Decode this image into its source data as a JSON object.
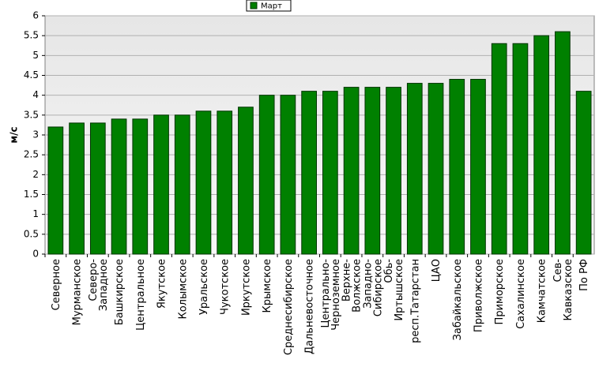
{
  "chart_data": {
    "type": "bar",
    "y_label": "м/с",
    "categories": [
      "Северное",
      "Мурманское",
      "Северо-\nЗападное",
      "Башкирское",
      "Центральное",
      "Якутское",
      "Колымское",
      "Уральское",
      "Чукотское",
      "Иркутское",
      "Крымское",
      "Среднесибирское",
      "Дальневосточное",
      "Центрально-\nЧерноземное",
      "Верхне-\nВолжское",
      "Западно-\nСибирское",
      "Обь-\nИртышское",
      "респ.Татарстан",
      "ЦАО",
      "Забайкальское",
      "Приволжское",
      "Приморское",
      "Сахалинское",
      "Камчатское",
      "Сев-\nКавказское",
      "По РФ"
    ],
    "series": [
      {
        "name": "Март",
        "color": "#008000",
        "values": [
          3.2,
          3.3,
          3.3,
          3.4,
          3.4,
          3.5,
          3.5,
          3.6,
          3.6,
          3.7,
          4.0,
          4.0,
          4.1,
          4.1,
          4.2,
          4.2,
          4.2,
          4.3,
          4.3,
          4.4,
          4.4,
          5.3,
          5.3,
          5.5,
          5.6,
          4.1
        ]
      }
    ],
    "ylim": [
      0,
      6
    ],
    "yticks": [
      0,
      0.5,
      1,
      1.5,
      2,
      2.5,
      3,
      3.5,
      4,
      4.5,
      5,
      5.5,
      6
    ],
    "grid": true,
    "legend": "top"
  }
}
